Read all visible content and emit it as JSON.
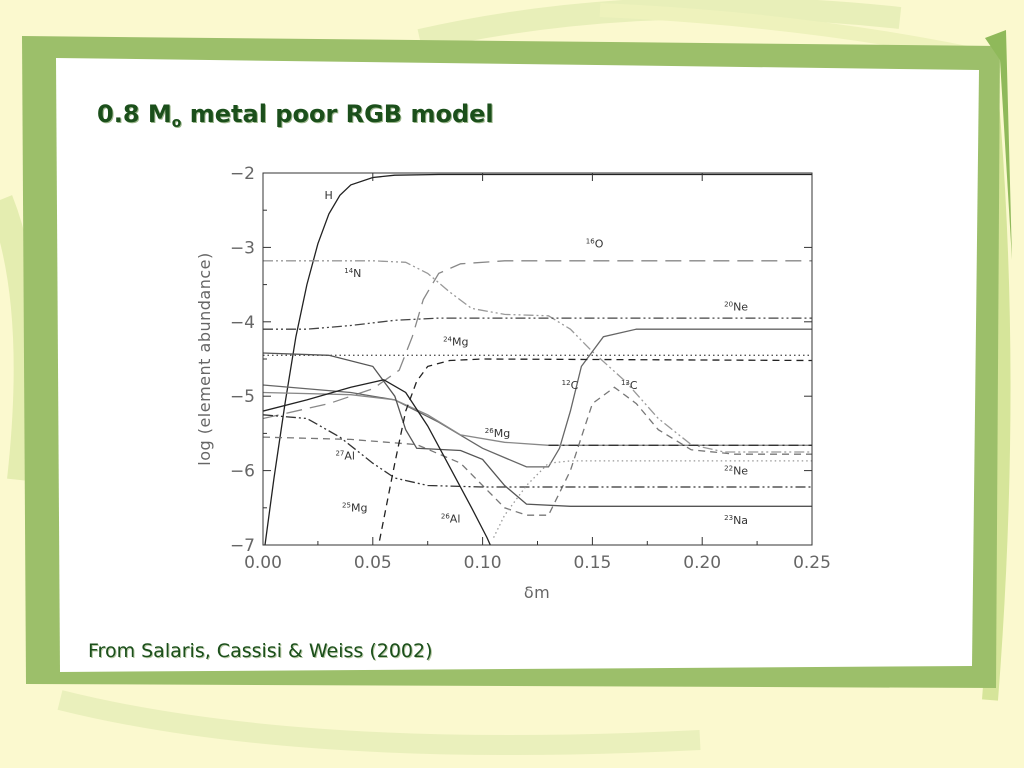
{
  "slide": {
    "title_main": "0.8 M",
    "title_sub": "o",
    "title_rest": " metal poor RGB model",
    "citation": "From Salaris, Cassisi & Weiss (2002)"
  },
  "colors": {
    "background": "#fbf9cf",
    "frame_green": "#9cbf6a",
    "panel": "#ffffff",
    "title_green": "#1b4f1b"
  },
  "chart_data": {
    "type": "line",
    "title": "",
    "xlabel": "δm",
    "ylabel": "log (element abundance)",
    "xlim": [
      0,
      0.25
    ],
    "ylim": [
      -7,
      -2
    ],
    "x_ticks": [
      0,
      0.05,
      0.1,
      0.15,
      0.2,
      0.25
    ],
    "x_tick_labels": [
      "0.00",
      "0.05",
      "0.10",
      "0.15",
      "0.20",
      "0.25"
    ],
    "y_ticks": [
      -2,
      -3,
      -4,
      -5,
      -6,
      -7
    ],
    "y_tick_labels": [
      "−2",
      "−3",
      "−4",
      "−5",
      "−6",
      "−7"
    ],
    "series": [
      {
        "name": "H",
        "sup": "",
        "style": "solid",
        "color": "#222222",
        "label_at": [
          0.028,
          -2.35
        ],
        "points": [
          [
            0,
            -7.2
          ],
          [
            0.005,
            -6.1
          ],
          [
            0.01,
            -5.1
          ],
          [
            0.015,
            -4.2
          ],
          [
            0.02,
            -3.5
          ],
          [
            0.025,
            -2.95
          ],
          [
            0.03,
            -2.55
          ],
          [
            0.035,
            -2.3
          ],
          [
            0.04,
            -2.16
          ],
          [
            0.05,
            -2.06
          ],
          [
            0.06,
            -2.03
          ],
          [
            0.08,
            -2.02
          ],
          [
            0.25,
            -2.02
          ]
        ]
      },
      {
        "name": "O",
        "sup": "16",
        "style": "longdash",
        "color": "#888888",
        "label_at": [
          0.147,
          -3.0
        ],
        "points": [
          [
            0,
            -5.3
          ],
          [
            0.03,
            -5.1
          ],
          [
            0.05,
            -4.9
          ],
          [
            0.062,
            -4.65
          ],
          [
            0.068,
            -4.2
          ],
          [
            0.073,
            -3.7
          ],
          [
            0.08,
            -3.35
          ],
          [
            0.09,
            -3.22
          ],
          [
            0.11,
            -3.18
          ],
          [
            0.25,
            -3.18
          ]
        ]
      },
      {
        "name": "N",
        "sup": "14",
        "style": "dashdotdot",
        "color": "#999999",
        "label_at": [
          0.037,
          -3.4
        ],
        "points": [
          [
            0,
            -3.18
          ],
          [
            0.05,
            -3.18
          ],
          [
            0.065,
            -3.2
          ],
          [
            0.075,
            -3.35
          ],
          [
            0.085,
            -3.6
          ],
          [
            0.095,
            -3.82
          ],
          [
            0.11,
            -3.9
          ],
          [
            0.13,
            -3.92
          ],
          [
            0.14,
            -4.1
          ],
          [
            0.15,
            -4.4
          ],
          [
            0.165,
            -4.8
          ],
          [
            0.18,
            -5.3
          ],
          [
            0.195,
            -5.65
          ],
          [
            0.21,
            -5.75
          ],
          [
            0.25,
            -5.75
          ]
        ]
      },
      {
        "name": "Ne",
        "sup": "20",
        "style": "dashdotdot",
        "color": "#444444",
        "label_at": [
          0.21,
          -3.85
        ],
        "points": [
          [
            0,
            -4.1
          ],
          [
            0.02,
            -4.1
          ],
          [
            0.04,
            -4.05
          ],
          [
            0.06,
            -3.98
          ],
          [
            0.08,
            -3.95
          ],
          [
            0.25,
            -3.95
          ]
        ]
      },
      {
        "name": "Mg",
        "sup": "24",
        "style": "dotted",
        "color": "#555555",
        "label_at": [
          0.082,
          -4.32
        ],
        "points": [
          [
            0,
            -4.45
          ],
          [
            0.25,
            -4.45
          ]
        ]
      },
      {
        "name": "C",
        "sup": "12",
        "style": "solid",
        "color": "#666666",
        "label_at": [
          0.136,
          -4.9
        ],
        "points": [
          [
            0,
            -4.85
          ],
          [
            0.04,
            -4.95
          ],
          [
            0.06,
            -5.05
          ],
          [
            0.08,
            -5.35
          ],
          [
            0.1,
            -5.7
          ],
          [
            0.12,
            -5.95
          ],
          [
            0.13,
            -5.95
          ],
          [
            0.135,
            -5.7
          ],
          [
            0.14,
            -5.2
          ],
          [
            0.145,
            -4.6
          ],
          [
            0.155,
            -4.2
          ],
          [
            0.17,
            -4.1
          ],
          [
            0.25,
            -4.1
          ]
        ]
      },
      {
        "name": "C",
        "sup": "13",
        "style": "dashed",
        "color": "#777777",
        "label_at": [
          0.163,
          -4.9
        ],
        "points": [
          [
            0,
            -5.55
          ],
          [
            0.04,
            -5.58
          ],
          [
            0.07,
            -5.65
          ],
          [
            0.09,
            -5.9
          ],
          [
            0.11,
            -6.5
          ],
          [
            0.12,
            -6.6
          ],
          [
            0.13,
            -6.6
          ],
          [
            0.14,
            -6.0
          ],
          [
            0.15,
            -5.1
          ],
          [
            0.16,
            -4.88
          ],
          [
            0.17,
            -5.1
          ],
          [
            0.18,
            -5.45
          ],
          [
            0.195,
            -5.72
          ],
          [
            0.215,
            -5.78
          ],
          [
            0.25,
            -5.78
          ]
        ]
      },
      {
        "name": "Mg",
        "sup": "26",
        "style": "solid",
        "color": "#888888",
        "label_at": [
          0.101,
          -5.55
        ],
        "points": [
          [
            0,
            -4.95
          ],
          [
            0.04,
            -4.98
          ],
          [
            0.06,
            -5.05
          ],
          [
            0.075,
            -5.25
          ],
          [
            0.09,
            -5.52
          ],
          [
            0.11,
            -5.62
          ],
          [
            0.13,
            -5.66
          ],
          [
            0.25,
            -5.66
          ]
        ]
      },
      {
        "name": "Mg",
        "sup": "26",
        "style": "dashdot",
        "color": "#333333",
        "label_at": [
          -1,
          -1
        ],
        "points": [
          [
            0.13,
            -5.66
          ],
          [
            0.25,
            -5.66
          ]
        ]
      },
      {
        "name": "Al",
        "sup": "27",
        "style": "dashdotdot",
        "color": "#333333",
        "label_at": [
          0.033,
          -5.85
        ],
        "points": [
          [
            0,
            -5.25
          ],
          [
            0.02,
            -5.3
          ],
          [
            0.035,
            -5.55
          ],
          [
            0.05,
            -5.9
          ],
          [
            0.06,
            -6.1
          ],
          [
            0.075,
            -6.2
          ],
          [
            0.1,
            -6.22
          ],
          [
            0.25,
            -6.22
          ]
        ]
      },
      {
        "name": "Ne",
        "sup": "22",
        "style": "dotted",
        "color": "#999999",
        "label_at": [
          0.21,
          -6.05
        ],
        "points": [
          [
            0.105,
            -6.9
          ],
          [
            0.11,
            -6.6
          ],
          [
            0.12,
            -6.2
          ],
          [
            0.13,
            -5.9
          ],
          [
            0.14,
            -5.87
          ],
          [
            0.25,
            -5.87
          ]
        ]
      },
      {
        "name": "Na",
        "sup": "23",
        "style": "solid",
        "color": "#555555",
        "label_at": [
          0.21,
          -6.72
        ],
        "points": [
          [
            0,
            -4.42
          ],
          [
            0.03,
            -4.45
          ],
          [
            0.05,
            -4.6
          ],
          [
            0.06,
            -5.0
          ],
          [
            0.065,
            -5.45
          ],
          [
            0.07,
            -5.7
          ],
          [
            0.09,
            -5.73
          ],
          [
            0.1,
            -5.85
          ],
          [
            0.11,
            -6.2
          ],
          [
            0.12,
            -6.45
          ],
          [
            0.14,
            -6.48
          ],
          [
            0.25,
            -6.48
          ]
        ]
      },
      {
        "name": "Mg",
        "sup": "25",
        "style": "solid",
        "color": "#222222",
        "label_at": [
          0.036,
          -6.55
        ],
        "points": [
          [
            0,
            -5.2
          ],
          [
            0.02,
            -5.05
          ],
          [
            0.04,
            -4.88
          ],
          [
            0.055,
            -4.78
          ],
          [
            0.065,
            -4.95
          ],
          [
            0.075,
            -5.4
          ],
          [
            0.085,
            -5.95
          ],
          [
            0.095,
            -6.5
          ],
          [
            0.102,
            -6.9
          ],
          [
            0.105,
            -7.1
          ]
        ]
      },
      {
        "name": "Al",
        "sup": "26",
        "style": "dashed",
        "color": "#222222",
        "label_at": [
          0.081,
          -6.7
        ],
        "points": [
          [
            0.052,
            -7.1
          ],
          [
            0.056,
            -6.5
          ],
          [
            0.06,
            -5.9
          ],
          [
            0.065,
            -5.2
          ],
          [
            0.07,
            -4.8
          ],
          [
            0.075,
            -4.6
          ],
          [
            0.085,
            -4.52
          ],
          [
            0.1,
            -4.5
          ],
          [
            0.25,
            -4.52
          ]
        ]
      }
    ]
  }
}
